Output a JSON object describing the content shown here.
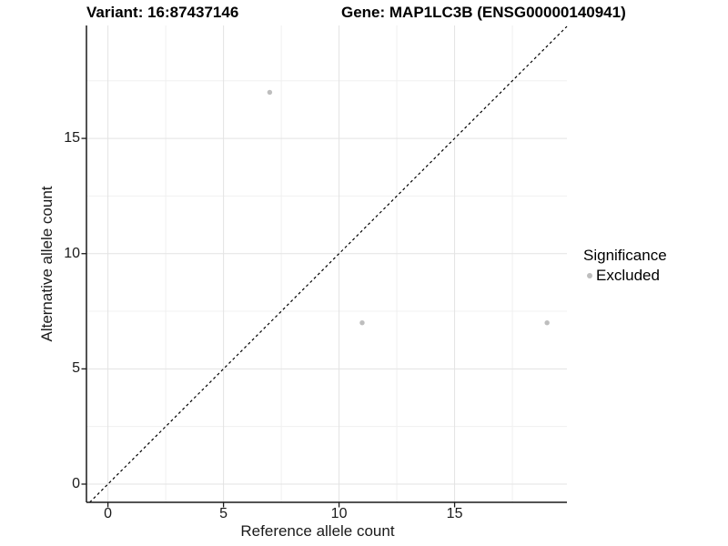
{
  "chart_data": {
    "type": "scatter",
    "title_left": "Variant: 16:87437146",
    "title_right": "Gene: MAP1LC3B (ENSG00000140941)",
    "xlabel": "Reference allele count",
    "ylabel": "Alternative allele count",
    "xlim": [
      -0.93,
      19.86
    ],
    "ylim": [
      -0.79,
      19.9
    ],
    "x_ticks": [
      0,
      5,
      10,
      15
    ],
    "x_minor_ticks": [
      2.5,
      7.5,
      12.5,
      17.5
    ],
    "y_ticks": [
      0,
      5,
      10,
      15
    ],
    "y_minor_ticks": [
      2.5,
      7.5,
      12.5,
      17.5
    ],
    "points": [
      {
        "x": 7,
        "y": 17,
        "category": "Excluded"
      },
      {
        "x": 11,
        "y": 7,
        "category": "Excluded"
      },
      {
        "x": 19,
        "y": 7,
        "category": "Excluded"
      }
    ],
    "identity_line": {
      "slope": 1,
      "intercept": 0,
      "style": "dashed"
    },
    "legend": {
      "title": "Significance",
      "items": [
        {
          "label": "Excluded",
          "color": "#bebebe"
        }
      ]
    },
    "colors": {
      "point": "#bebebe",
      "grid_major": "#e3e3e3",
      "grid_minor": "#f0f0f0",
      "axis": "#1a1a1a",
      "dashed_line": "#000000"
    },
    "grid": "major+minor",
    "legend_position": "right"
  }
}
